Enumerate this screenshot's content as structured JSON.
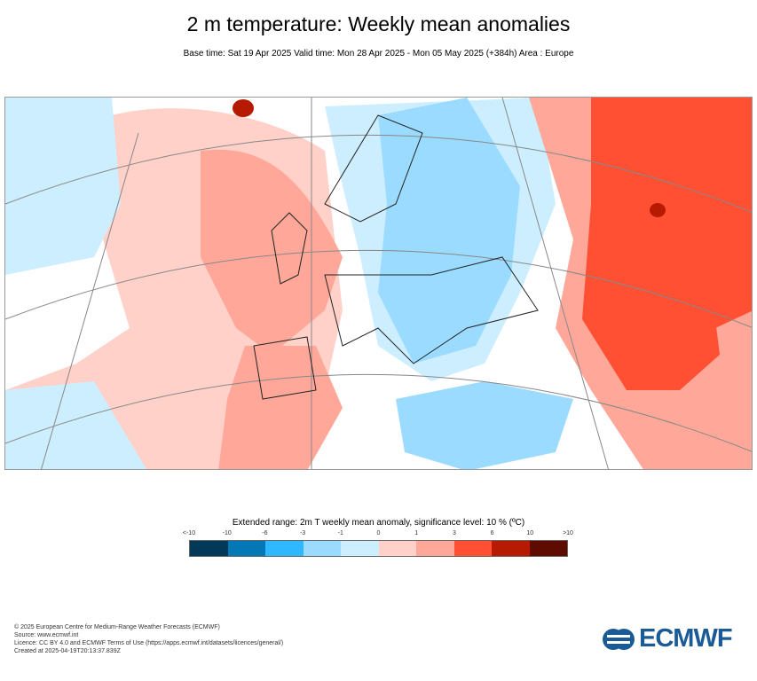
{
  "header": {
    "title": "2 m temperature: Weekly mean anomalies",
    "subtitle": "Base time: Sat 19 Apr 2025 Valid time: Mon 28 Apr 2025 - Mon 05 May 2025 (+384h) Area : Europe"
  },
  "legend": {
    "title": "Extended range: 2m T weekly mean anomaly, significance level: 10 % (ºC)",
    "ticks": [
      "<-10",
      "-10",
      "-6",
      "-3",
      "-1",
      "0",
      "1",
      "3",
      "6",
      "10",
      ">10"
    ],
    "colors": [
      "#023858",
      "#0477b5",
      "#2fb8ff",
      "#9bdbff",
      "#cdeeff",
      "#ffd1c9",
      "#ffa899",
      "#ff5033",
      "#b61a00",
      "#5e0b00"
    ]
  },
  "footer": {
    "line1": "© 2025 European Centre for Medium-Range Weather Forecasts (ECMWF)",
    "line2": "Source: www.ecmwf.int",
    "line3": "Licence: CC BY 4.0 and ECMWF Terms of Use (https://apps.ecmwf.int/datasets/licences/general/)",
    "line4": "Created at 2025-04-19T20:13:37.839Z"
  },
  "logo": {
    "text": "ECMWF"
  }
}
